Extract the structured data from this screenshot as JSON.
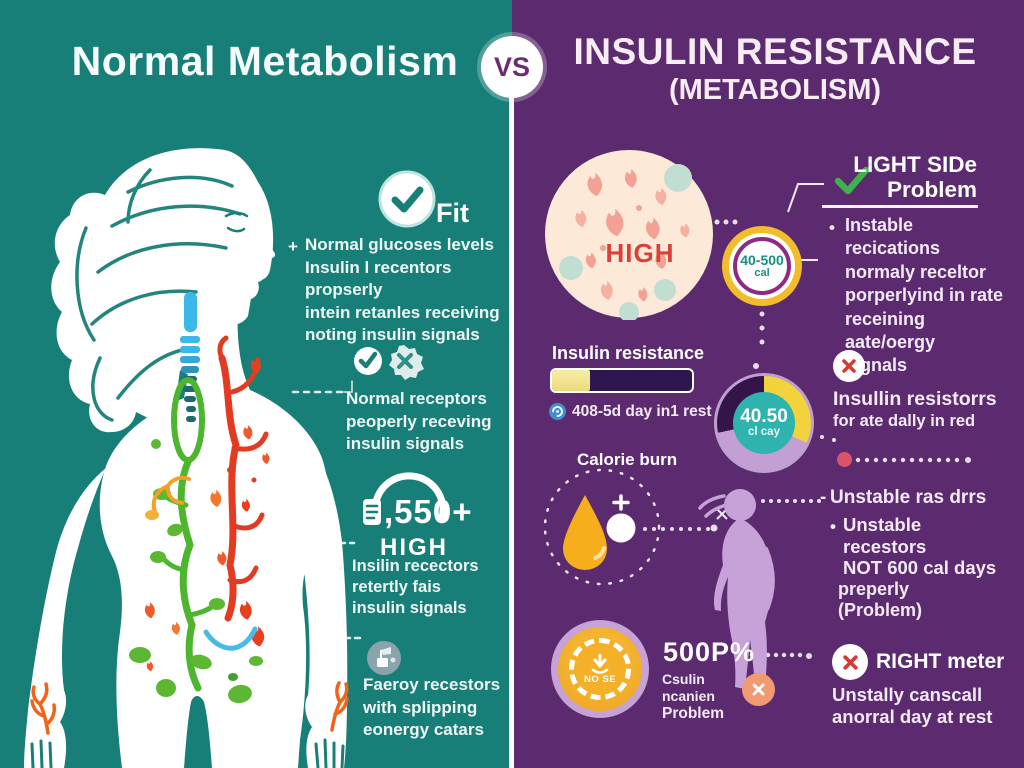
{
  "colors": {
    "left_bg": "#187F78",
    "right_bg": "#5C2B6F",
    "accent_red": "#D33C35",
    "accent_green": "#3BB44A",
    "accent_yellow": "#F2BD2B",
    "accent_teal": "#2FB3AF",
    "accent_lavender": "#C7A2D8",
    "cream_circle": "#FCE9D8",
    "salmon": "#F2A193"
  },
  "left_panel": {
    "title": "Normal Metabolism",
    "fit_block": {
      "label": "Fit",
      "bullet": "+",
      "lines": [
        "Normal glucoses levels",
        "Insulin l recentors propserly",
        "intein retanles receiving",
        "noting insulin signals"
      ]
    },
    "receptors_block": {
      "bullet": "•",
      "lines": [
        "Normal receptors",
        "peoperly receving",
        "insulin signals"
      ]
    },
    "counter_block": {
      "value": ",550+",
      "label": "HIGH",
      "bullet": "•",
      "lines": [
        "Insilin recectors",
        "retertly fais",
        "insulin signals"
      ]
    },
    "energy_block": {
      "lines": [
        "Faeroy recestors",
        "with splipping",
        "eonergy catars"
      ]
    }
  },
  "vs_badge": "VS",
  "right_panel": {
    "title_line1": "INSULIN RESISTANCE",
    "title_line2": "(METABOLISM)",
    "high_circle_label": "HIGH",
    "cal_gauge": {
      "value": "40-500",
      "unit": "cal"
    },
    "light_side_block": {
      "title_line1": "LIGHT SIDe",
      "title_line2": "Problem",
      "bullet": "•",
      "lines": [
        "Instable recications",
        "normaly receltor",
        "porperlyind in rate",
        "receining aate/oergy",
        "signals"
      ]
    },
    "insulin_bar": {
      "label": "Insulin resistance",
      "percent": 27,
      "caption": "408-5d day in1 rest"
    },
    "day_donut": {
      "value": "40.50",
      "unit": "cl cay"
    },
    "resistors_block": {
      "line1": "Insullin resistorrs",
      "line2": "for ate dally in red"
    },
    "calorie_block": {
      "label": "Calorie burn"
    },
    "unstable_block": {
      "heading": "Unstable ras drrs",
      "bullet": "•",
      "lines": [
        "Unstable recestors",
        "NOT 600 cal days",
        "preperly",
        "(Problem)"
      ]
    },
    "timer_block": {
      "label": "NO SE"
    },
    "percent_block": {
      "value": "500P%",
      "lines": [
        "Csulin",
        "ncanien",
        "Problem"
      ]
    },
    "meter_block": {
      "title": "RIGHT meter",
      "lines": [
        "Unstally canscall",
        "anorral day at rest"
      ]
    }
  }
}
